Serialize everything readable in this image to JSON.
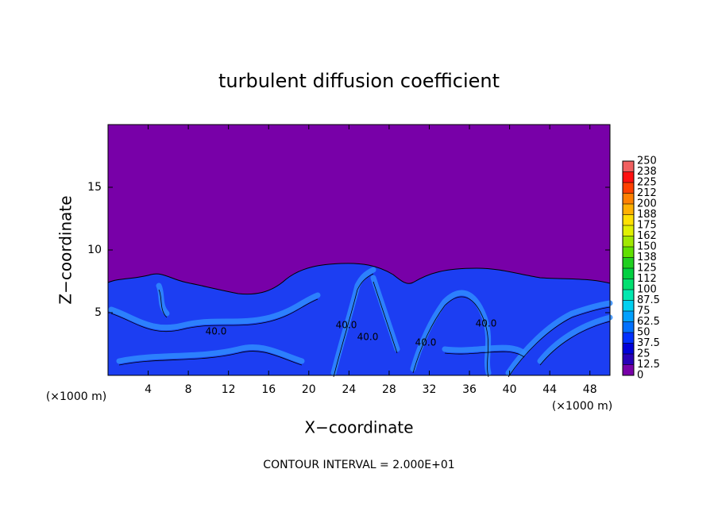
{
  "chart_data": {
    "type": "contour",
    "title": "turbulent diffusion coefficient",
    "x_label": "X−coordinate",
    "y_label": "Z−coordinate",
    "x_unit": "(×1000 m)",
    "y_unit": "(×1000 m)",
    "footer": "CONTOUR INTERVAL = 2.000E+01",
    "contour_labels": [
      "40.0",
      "40.0",
      "40.0",
      "40.0",
      "40.0"
    ],
    "xlim": [
      0,
      50
    ],
    "xticks": [
      4,
      8,
      12,
      16,
      20,
      24,
      28,
      32,
      36,
      40,
      44,
      48
    ],
    "ylim": [
      0,
      20
    ],
    "yticks": [
      5,
      10,
      15
    ],
    "background_color": "#7800a8",
    "colorbar": {
      "ticks": [
        0,
        12.5,
        25,
        37.5,
        50,
        62.5,
        75,
        87.5,
        100,
        {
          "value": 112.5,
          "label": "112"
        },
        125,
        {
          "value": 137.5,
          "label": "138"
        },
        150,
        {
          "value": 162.5,
          "label": "162"
        },
        175,
        {
          "value": 187.5,
          "label": "188"
        },
        200,
        {
          "value": 212.5,
          "label": "212"
        },
        225,
        {
          "value": 237.5,
          "label": "238"
        },
        250
      ],
      "colors": [
        "#7800a8",
        "#2800b8",
        "#0000d8",
        "#0030ff",
        "#0070ff",
        "#00a0ff",
        "#00d0f0",
        "#00e8b0",
        "#00e070",
        "#00d040",
        "#20d020",
        "#60e000",
        "#a0e800",
        "#e0f000",
        "#ffe000",
        "#ffb000",
        "#ff8000",
        "#ff4000",
        "#ff1010",
        "#f06060"
      ]
    }
  }
}
